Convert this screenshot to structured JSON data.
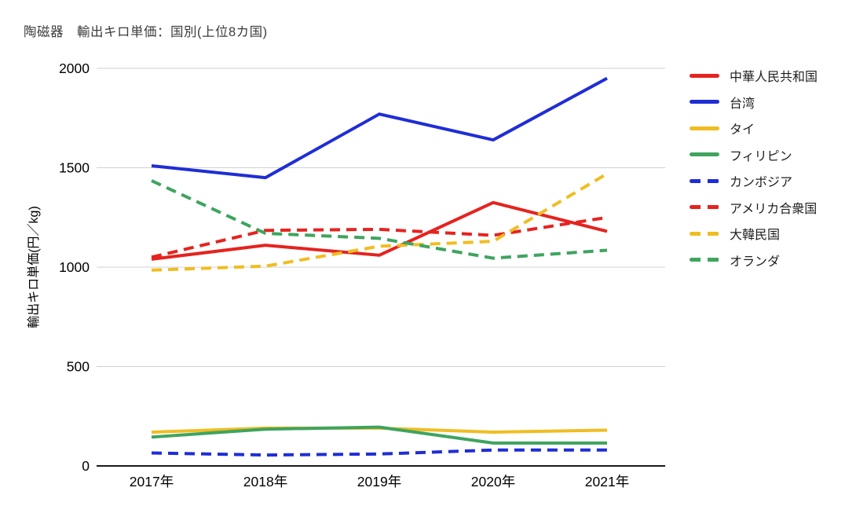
{
  "title": "陶磁器　輸出キロ単価：国別(上位8カ国)",
  "chart_data": {
    "type": "line",
    "title": "陶磁器　輸出キロ単価：国別(上位8カ国)",
    "xlabel": "",
    "ylabel": "輸出キロ単価(円／kg)",
    "categories": [
      "2017年",
      "2018年",
      "2019年",
      "2020年",
      "2021年"
    ],
    "ylim": [
      0,
      2000
    ],
    "yticks": [
      0,
      500,
      1000,
      1500,
      2000
    ],
    "grid": true,
    "legend_position": "right",
    "colors": {
      "red": "#e5231f",
      "blue": "#1f2dd6",
      "yellow": "#f0bd22",
      "green": "#3ea45f",
      "gridline": "#d0d0d0",
      "axis": "#1a1a1a"
    },
    "series": [
      {
        "name": "中華人民共和国",
        "color": "#e5231f",
        "dash": false,
        "values": [
          1040,
          1110,
          1060,
          1325,
          1180
        ]
      },
      {
        "name": "台湾",
        "color": "#1f2dd6",
        "dash": false,
        "values": [
          1510,
          1450,
          1770,
          1640,
          1950
        ]
      },
      {
        "name": "タイ",
        "color": "#f0bd22",
        "dash": false,
        "values": [
          170,
          190,
          190,
          170,
          180
        ]
      },
      {
        "name": "フィリピン",
        "color": "#3ea45f",
        "dash": false,
        "values": [
          145,
          185,
          195,
          115,
          115
        ]
      },
      {
        "name": "カンボジア",
        "color": "#1f2dd6",
        "dash": true,
        "values": [
          65,
          55,
          60,
          80,
          80
        ]
      },
      {
        "name": "アメリカ合衆国",
        "color": "#e5231f",
        "dash": true,
        "values": [
          1050,
          1185,
          1190,
          1160,
          1250
        ]
      },
      {
        "name": "大韓民国",
        "color": "#f0bd22",
        "dash": true,
        "values": [
          985,
          1005,
          1105,
          1130,
          1470
        ]
      },
      {
        "name": "オランダ",
        "color": "#3ea45f",
        "dash": true,
        "values": [
          1435,
          1170,
          1145,
          1045,
          1085
        ]
      }
    ]
  }
}
